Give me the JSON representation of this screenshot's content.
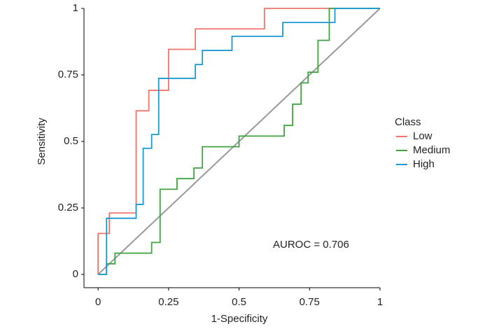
{
  "chart_data": {
    "type": "line",
    "xlabel": "1-Specificity",
    "ylabel": "Sensitivity",
    "legend_title": "Class",
    "legend": "right",
    "annotation": "AUROC = 0.706",
    "xlim": [
      -0.05,
      1
    ],
    "ylim": [
      -0.05,
      1
    ],
    "xticks": [
      0,
      0.25,
      0.5,
      0.75,
      1
    ],
    "yticks": [
      0,
      0.25,
      0.5,
      0.75,
      1
    ],
    "series": [
      {
        "name": "Low",
        "color": "#f0746c",
        "x": [
          0,
          0,
          0.04,
          0.04,
          0.135,
          0.135,
          0.18,
          0.18,
          0.25,
          0.25,
          0.345,
          0.345,
          0.59,
          0.59,
          1
        ],
        "values": [
          0,
          0.154,
          0.154,
          0.231,
          0.231,
          0.615,
          0.615,
          0.692,
          0.692,
          0.846,
          0.846,
          0.923,
          0.923,
          1,
          1
        ]
      },
      {
        "name": "Medium",
        "color": "#3fa33f",
        "x": [
          0,
          0.03,
          0.03,
          0.06,
          0.06,
          0.19,
          0.19,
          0.22,
          0.22,
          0.28,
          0.28,
          0.34,
          0.34,
          0.37,
          0.37,
          0.5,
          0.5,
          0.66,
          0.66,
          0.69,
          0.69,
          0.72,
          0.72,
          0.745,
          0.745,
          0.78,
          0.78,
          0.82,
          0.82,
          1
        ],
        "values": [
          0,
          0,
          0.04,
          0.04,
          0.08,
          0.08,
          0.12,
          0.12,
          0.32,
          0.32,
          0.36,
          0.36,
          0.4,
          0.4,
          0.48,
          0.48,
          0.52,
          0.52,
          0.56,
          0.56,
          0.64,
          0.64,
          0.72,
          0.72,
          0.76,
          0.76,
          0.88,
          0.88,
          1,
          1
        ]
      },
      {
        "name": "High",
        "color": "#1b9ad6",
        "x": [
          0,
          0.03,
          0.03,
          0.135,
          0.135,
          0.16,
          0.16,
          0.19,
          0.19,
          0.215,
          0.215,
          0.345,
          0.345,
          0.37,
          0.37,
          0.475,
          0.475,
          0.655,
          0.655,
          0.84,
          0.84,
          1
        ],
        "values": [
          0,
          0,
          0.211,
          0.211,
          0.263,
          0.263,
          0.474,
          0.474,
          0.526,
          0.526,
          0.737,
          0.737,
          0.789,
          0.789,
          0.842,
          0.842,
          0.895,
          0.895,
          0.947,
          0.947,
          1,
          1
        ]
      }
    ]
  }
}
